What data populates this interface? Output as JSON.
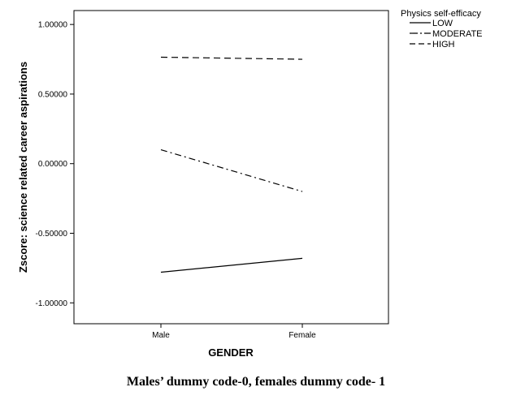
{
  "chart_data": {
    "type": "line",
    "x": [
      "Male",
      "Female"
    ],
    "xlabel": "GENDER",
    "ylabel": "Zscore: science related career aspirations",
    "ylim": [
      -1.15,
      1.1
    ],
    "yticks": [
      "1.00000",
      "0.50000",
      "0.00000",
      "-0.50000",
      "-1.00000"
    ],
    "ytick_values": [
      1.0,
      0.5,
      0.0,
      -0.5,
      -1.0
    ],
    "grid": false,
    "legend": {
      "title": "Physics self-efficacy",
      "placement": "top-right-outside"
    },
    "series": [
      {
        "name": "LOW",
        "values": [
          -0.78,
          -0.68
        ],
        "style": "solid"
      },
      {
        "name": "MODERATE",
        "values": [
          0.1,
          -0.2
        ],
        "style": "dashdot"
      },
      {
        "name": "HIGH",
        "values": [
          0.765,
          0.75
        ],
        "style": "dashed"
      }
    ]
  },
  "caption": "Males’ dummy  code-0, females dummy  code- 1"
}
